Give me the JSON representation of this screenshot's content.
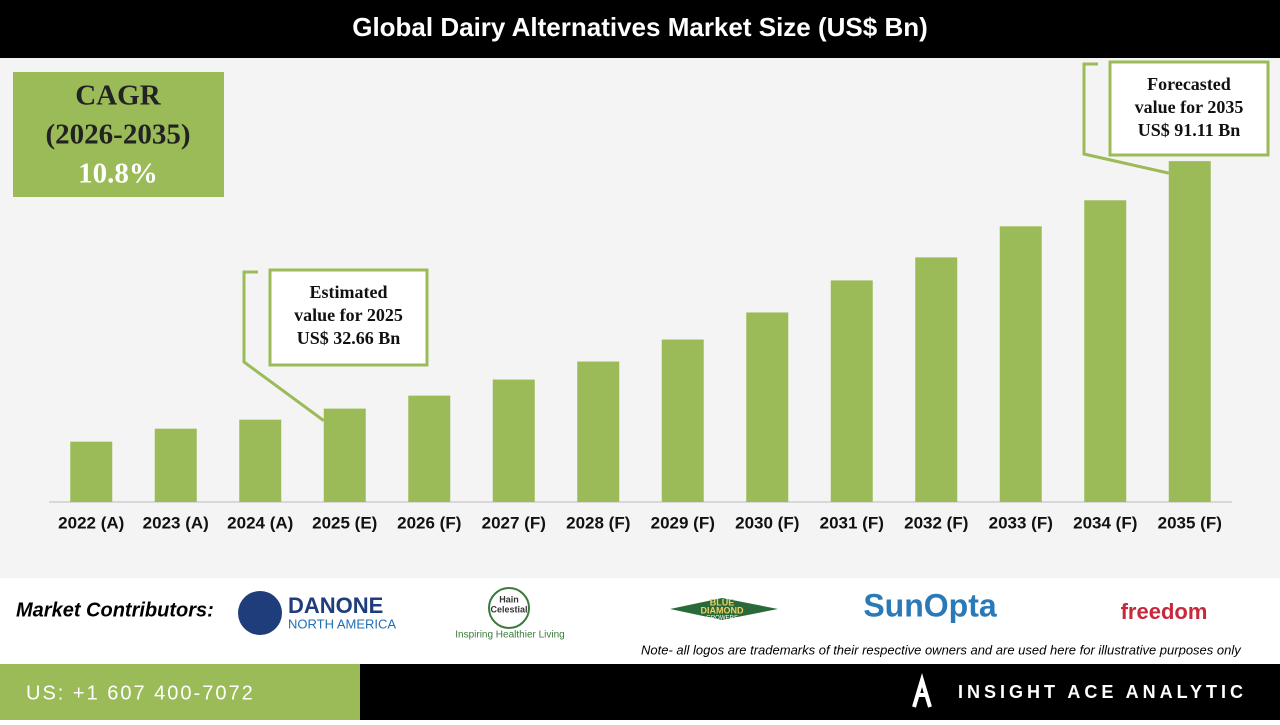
{
  "chart_data": {
    "type": "bar",
    "title": "Global Dairy Alternatives Market Size (US$ Bn)",
    "categories": [
      "2022 (A)",
      "2023 (A)",
      "2024 (A)",
      "2025 (E)",
      "2026 (F)",
      "2027 (F)",
      "2028 (F)",
      "2029 (F)",
      "2030 (F)",
      "2031 (F)",
      "2032 (F)",
      "2033 (F)",
      "2034 (F)",
      "2035 (F)"
    ],
    "values": [
      24.85,
      27.92,
      30.05,
      32.66,
      35.73,
      39.52,
      43.78,
      48.98,
      55.37,
      62.94,
      68.38,
      75.72,
      81.87,
      91.11
    ],
    "color": "#9bbb59",
    "ylim": [
      10.6,
      115
    ],
    "cagr": [
      "CAGR",
      "(2026-2035)",
      "10.8%"
    ],
    "annotations": [
      {
        "lines": [
          "Estimated",
          "value for 2025",
          "US$ 32.66 Bn"
        ],
        "index": 3
      },
      {
        "lines": [
          "Forecasted",
          "value for 2035",
          "US$ 91.11 Bn"
        ],
        "index": 13
      }
    ]
  },
  "contributors": {
    "label": "Market Contributors:",
    "logos": [
      [
        "DANONE",
        "NORTH AMERICA"
      ],
      [
        "Hain",
        "Celestial",
        "Inspiring Healthier Living"
      ],
      [
        "BLUE",
        "DIAMOND",
        "GROWERS"
      ],
      [
        "SunOpta"
      ],
      [
        "freedom"
      ]
    ],
    "note": "Note- all logos are trademarks of their respective owners and are used here for illustrative purposes only"
  },
  "footer": {
    "phone": "US: +1 607 400-7072",
    "brand": "INSIGHT ACE ANALYTIC"
  }
}
